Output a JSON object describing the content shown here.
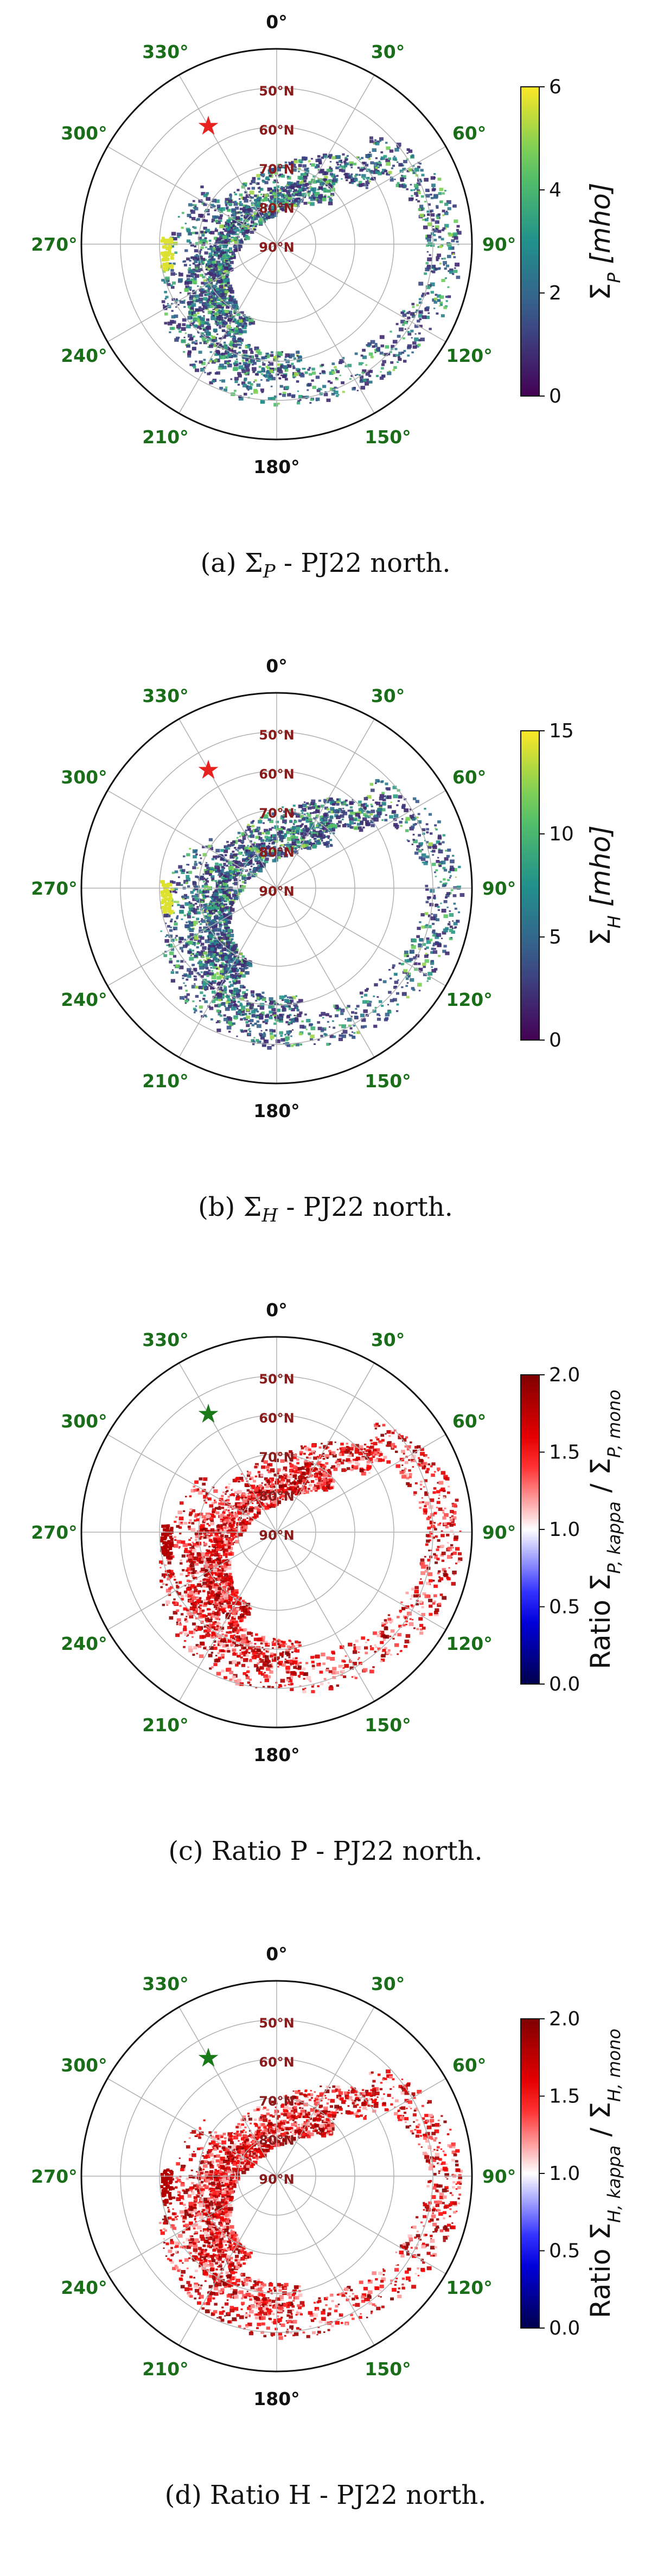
{
  "figure": {
    "panels": [
      {
        "id": "a",
        "caption_prefix": "(a)",
        "caption_symbol": "Σ",
        "caption_sub": "P",
        "caption_suffix": " - PJ22 north.",
        "chart_data": {
          "type": "heatmap",
          "projection": "polar (north pole)",
          "variable": "Pedersen conductance",
          "angular_ticks": [
            "0°",
            "30°",
            "60°",
            "90°",
            "120°",
            "150°",
            "180°",
            "210°",
            "240°",
            "270°",
            "300°",
            "330°"
          ],
          "radial_ticks": [
            "50°N",
            "60°N",
            "70°N",
            "80°N",
            "90°N"
          ],
          "colorbar": {
            "label": "Σ",
            "label_sub": "P",
            "label_unit": " [mho]",
            "ticks": [
              "0",
              "2",
              "4",
              "6"
            ],
            "range": [
              0,
              6
            ],
            "colormap": "viridis"
          },
          "marker": {
            "symbol": "★",
            "color": "#e8231f",
            "longitude_deg": 330,
            "latitude_deg": 55
          }
        }
      },
      {
        "id": "b",
        "caption_prefix": "(b)",
        "caption_symbol": "Σ",
        "caption_sub": "H",
        "caption_suffix": " - PJ22 north.",
        "chart_data": {
          "type": "heatmap",
          "projection": "polar (north pole)",
          "variable": "Hall conductance",
          "angular_ticks": [
            "0°",
            "30°",
            "60°",
            "90°",
            "120°",
            "150°",
            "180°",
            "210°",
            "240°",
            "270°",
            "300°",
            "330°"
          ],
          "radial_ticks": [
            "50°N",
            "60°N",
            "70°N",
            "80°N",
            "90°N"
          ],
          "colorbar": {
            "label": "Σ",
            "label_sub": "H",
            "label_unit": " [mho]",
            "ticks": [
              "0",
              "5",
              "10",
              "15"
            ],
            "range": [
              0,
              15
            ],
            "colormap": "viridis"
          },
          "marker": {
            "symbol": "★",
            "color": "#e8231f",
            "longitude_deg": 330,
            "latitude_deg": 55
          }
        }
      },
      {
        "id": "c",
        "caption_prefix": "(c)",
        "caption_symbol": "",
        "caption_sub": "",
        "caption_suffix": "Ratio P - PJ22 north.",
        "chart_data": {
          "type": "heatmap",
          "projection": "polar (north pole)",
          "variable": "Pedersen conductance ratio kappa / mono",
          "angular_ticks": [
            "0°",
            "30°",
            "60°",
            "90°",
            "120°",
            "150°",
            "180°",
            "210°",
            "240°",
            "270°",
            "300°",
            "330°"
          ],
          "radial_ticks": [
            "50°N",
            "60°N",
            "70°N",
            "80°N",
            "90°N"
          ],
          "colorbar": {
            "label": "Ratio Σ",
            "label_sub": "P, kappa",
            "label_mid": " / Σ",
            "label_sub2": "P, mono",
            "ticks": [
              "0.0",
              "0.5",
              "1.0",
              "1.5",
              "2.0"
            ],
            "range": [
              0,
              2
            ],
            "colormap": "seismic"
          },
          "marker": {
            "symbol": "★",
            "color": "#1a7a1a",
            "longitude_deg": 330,
            "latitude_deg": 55
          }
        }
      },
      {
        "id": "d",
        "caption_prefix": "(d)",
        "caption_symbol": "",
        "caption_sub": "",
        "caption_suffix": "Ratio H - PJ22 north.",
        "chart_data": {
          "type": "heatmap",
          "projection": "polar (north pole)",
          "variable": "Hall conductance ratio kappa / mono",
          "angular_ticks": [
            "0°",
            "30°",
            "60°",
            "90°",
            "120°",
            "150°",
            "180°",
            "210°",
            "240°",
            "270°",
            "300°",
            "330°"
          ],
          "radial_ticks": [
            "50°N",
            "60°N",
            "70°N",
            "80°N",
            "90°N"
          ],
          "colorbar": {
            "label": "Ratio Σ",
            "label_sub": "H, kappa",
            "label_mid": " / Σ",
            "label_sub2": "H, mono",
            "ticks": [
              "0.0",
              "0.5",
              "1.0",
              "1.5",
              "2.0"
            ],
            "range": [
              0,
              2
            ],
            "colormap": "seismic"
          },
          "marker": {
            "symbol": "★",
            "color": "#1a7a1a",
            "longitude_deg": 330,
            "latitude_deg": 55
          }
        }
      }
    ],
    "colors": {
      "angular_label": "#1a6e1a",
      "radial_label": "#8b1a1a",
      "grid": "#b0b0b0",
      "frame": "#111111"
    }
  }
}
